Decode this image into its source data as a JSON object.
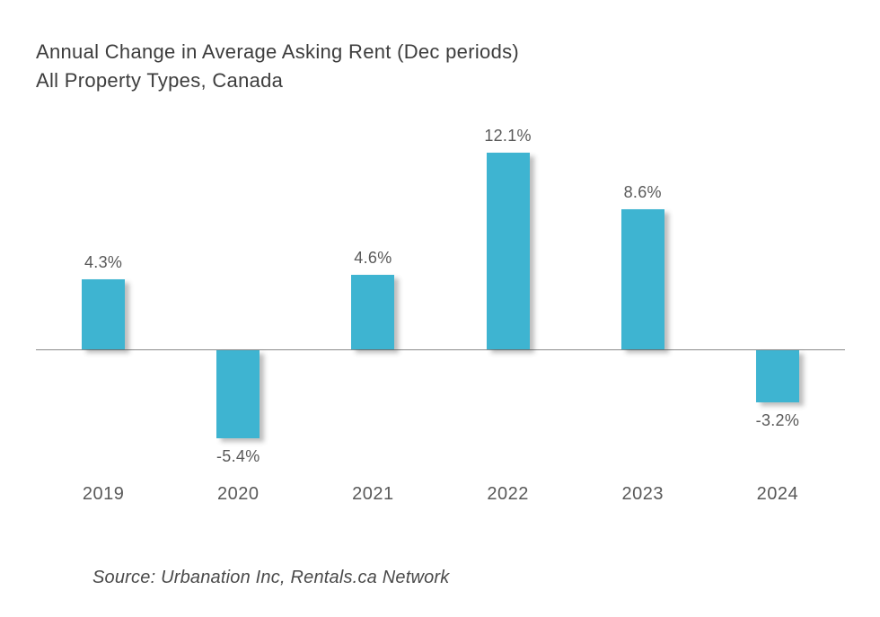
{
  "title": {
    "line1": "Annual Change in Average Asking Rent (Dec periods)",
    "line2": "All Property Types, Canada"
  },
  "source": "Source: Urbanation Inc, Rentals.ca Network",
  "colors": {
    "bar": "#3eb4d1",
    "axis": "#8a8a8a",
    "title_text": "#3d3d3d",
    "label_text": "#595959"
  },
  "chart_data": {
    "type": "bar",
    "title": "Annual Change in Average Asking Rent (Dec periods) All Property Types, Canada",
    "categories": [
      "2019",
      "2020",
      "2021",
      "2022",
      "2023",
      "2024"
    ],
    "values": [
      4.3,
      -5.4,
      4.6,
      12.1,
      8.6,
      -3.2
    ],
    "value_labels": [
      "4.3%",
      "-5.4%",
      "4.6%",
      "12.1%",
      "8.6%",
      "-3.2%"
    ],
    "xlabel": "",
    "ylabel": "",
    "ylim": [
      -7,
      14
    ],
    "grid": false,
    "legend": "none",
    "bar_color": "#3eb4d1",
    "source": "Source: Urbanation Inc, Rentals.ca Network"
  }
}
